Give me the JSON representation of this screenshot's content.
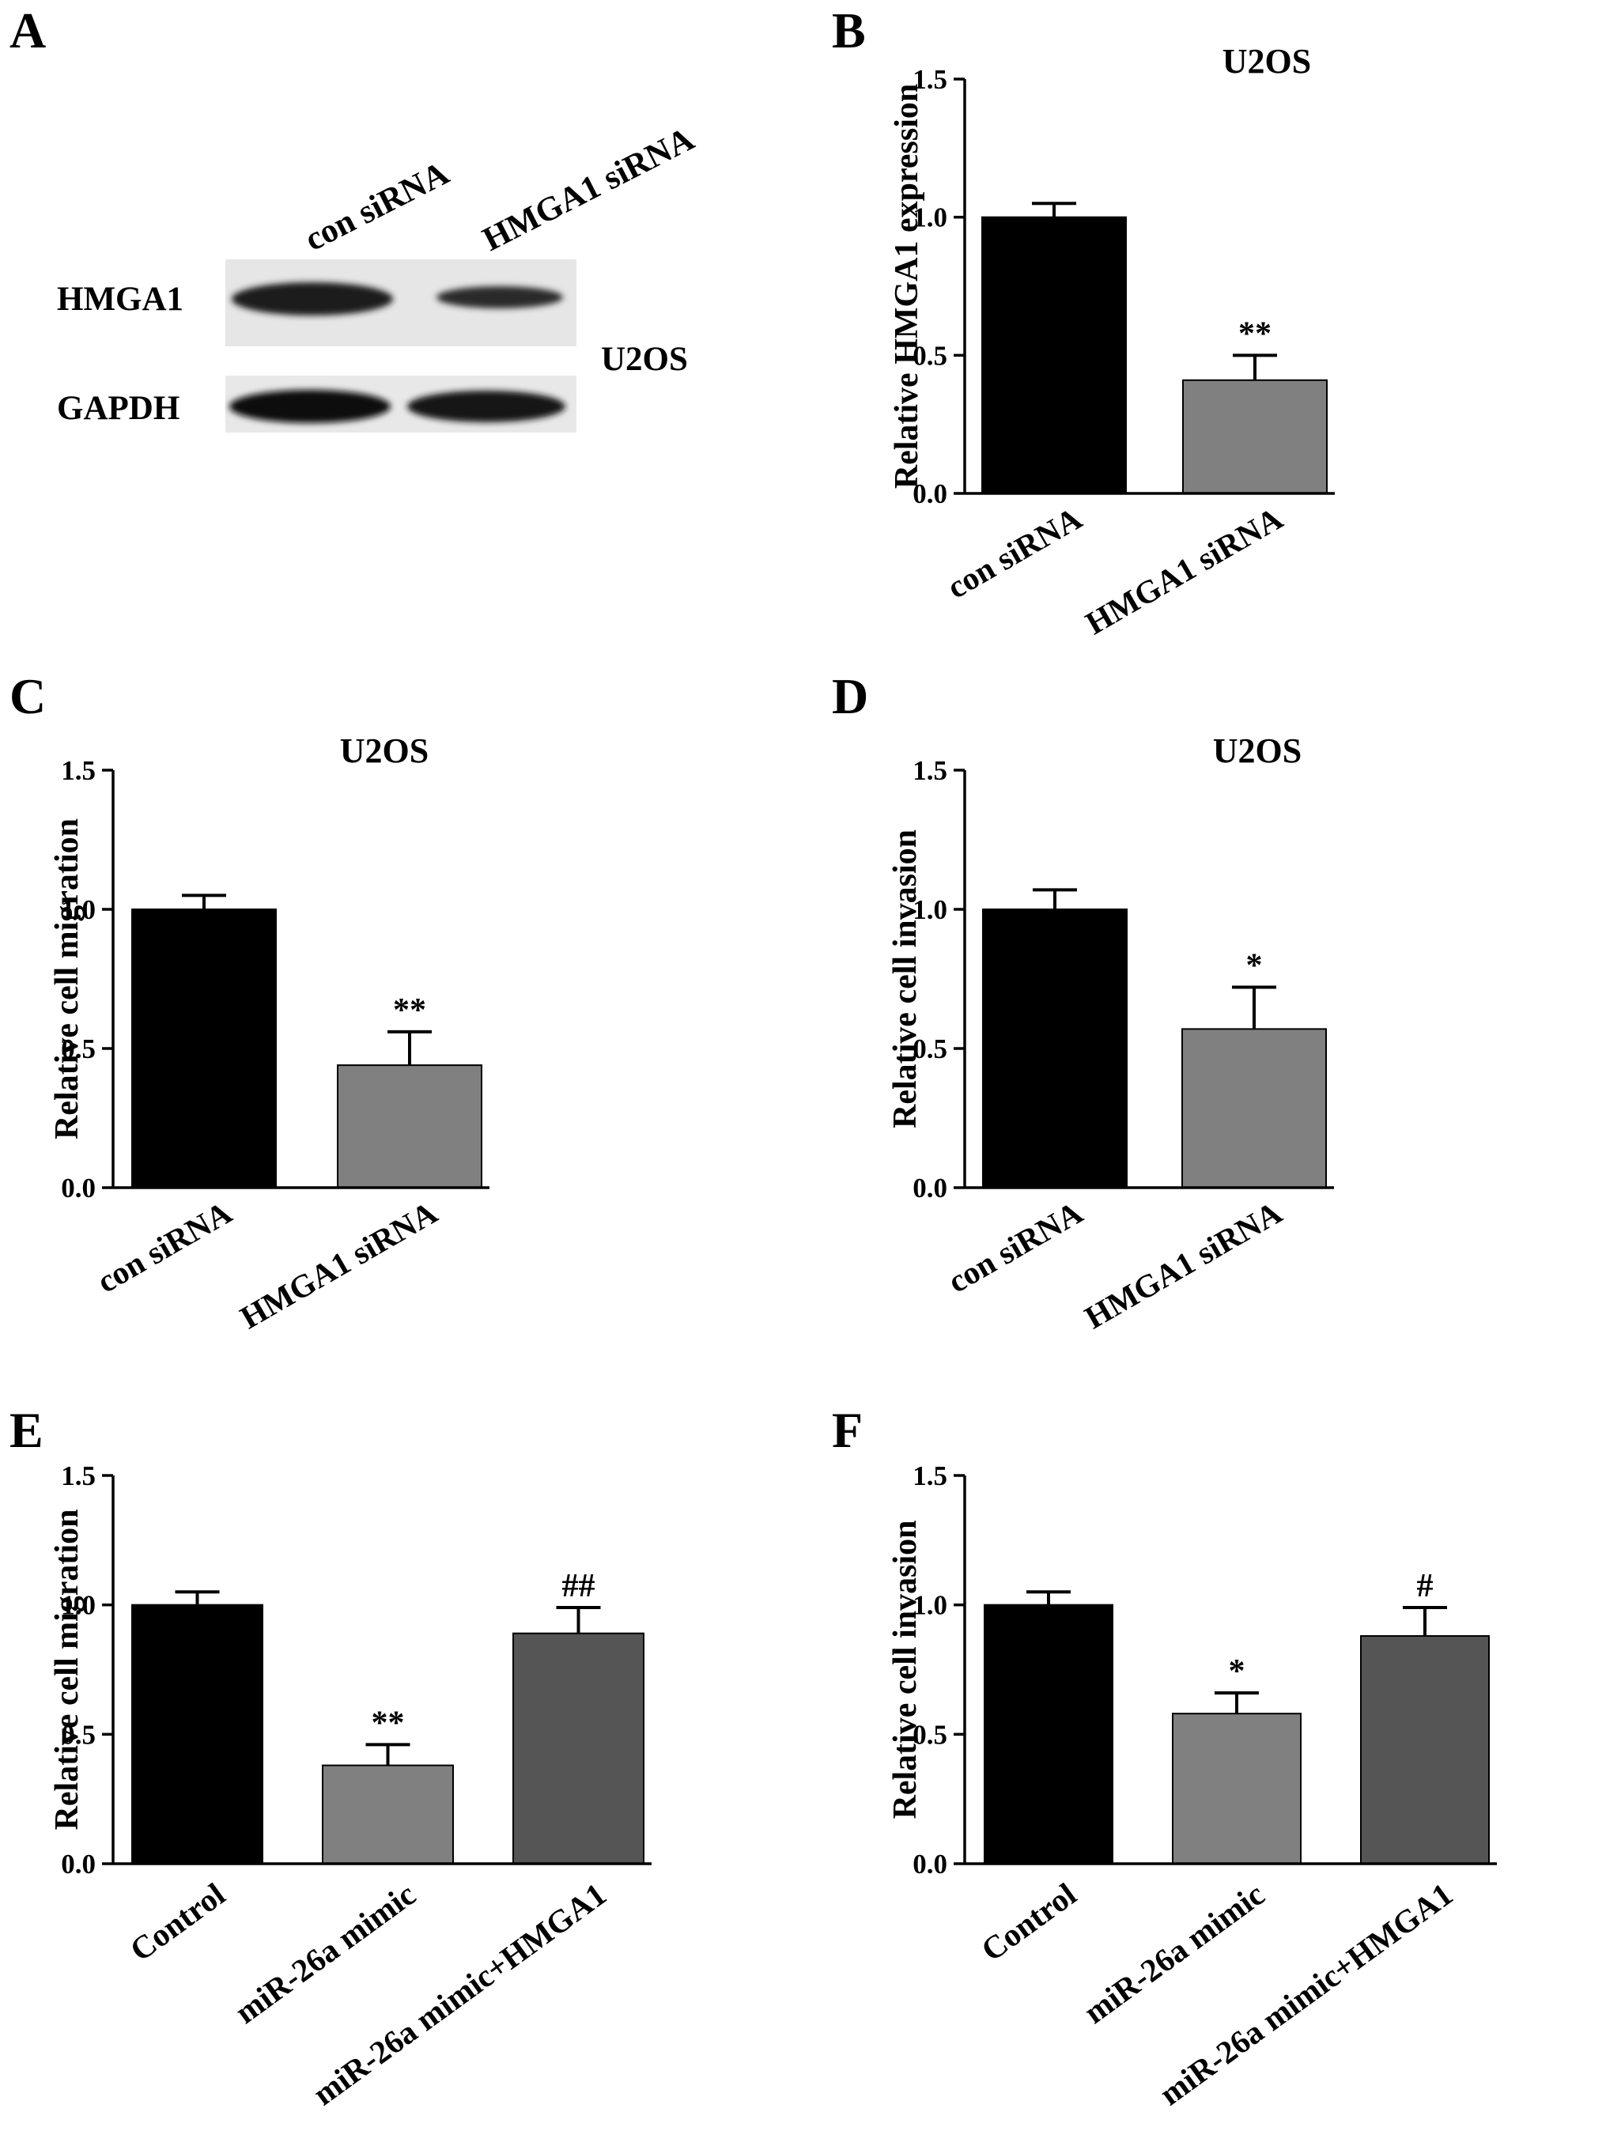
{
  "blot": {
    "letter": "A",
    "columns": [
      "con siRNA",
      "HMGA1 siRNA"
    ],
    "rows": [
      "HMGA1",
      "GAPDH"
    ],
    "cell_line": "U2OS"
  },
  "chart_data": [
    {
      "letter": "B",
      "type": "bar",
      "title": "U2OS",
      "xlabel": "",
      "ylabel": "Relative HMGA1 expression",
      "ylim": [
        0,
        1.5
      ],
      "yticks": [
        "0.0",
        "0.5",
        "1.0",
        "1.5"
      ],
      "categories": [
        "con siRNA",
        "HMGA1 siRNA"
      ],
      "values": [
        1.0,
        0.41
      ],
      "errors": [
        0.05,
        0.09
      ],
      "colors": [
        "#000000",
        "#808080"
      ],
      "annotations": [
        "",
        "**"
      ],
      "grid": false,
      "legend": "none"
    },
    {
      "letter": "C",
      "type": "bar",
      "title": "U2OS",
      "xlabel": "",
      "ylabel": "Relative cell migration",
      "ylim": [
        0,
        1.5
      ],
      "yticks": [
        "0.0",
        "0.5",
        "1.0",
        "1.5"
      ],
      "categories": [
        "con siRNA",
        "HMGA1 siRNA"
      ],
      "values": [
        1.0,
        0.44
      ],
      "errors": [
        0.05,
        0.12
      ],
      "colors": [
        "#000000",
        "#808080"
      ],
      "annotations": [
        "",
        "**"
      ],
      "grid": false,
      "legend": "none"
    },
    {
      "letter": "D",
      "type": "bar",
      "title": "U2OS",
      "xlabel": "",
      "ylabel": "Relative cell invasion",
      "ylim": [
        0,
        1.5
      ],
      "yticks": [
        "0.0",
        "0.5",
        "1.0",
        "1.5"
      ],
      "categories": [
        "con siRNA",
        "HMGA1 siRNA"
      ],
      "values": [
        1.0,
        0.57
      ],
      "errors": [
        0.07,
        0.15
      ],
      "colors": [
        "#000000",
        "#808080"
      ],
      "annotations": [
        "",
        "*"
      ],
      "grid": false,
      "legend": "none"
    },
    {
      "letter": "E",
      "type": "bar",
      "title": "",
      "xlabel": "",
      "ylabel": "Relative cell migration",
      "ylim": [
        0,
        1.5
      ],
      "yticks": [
        "0.0",
        "0.5",
        "1.0",
        "1.5"
      ],
      "categories": [
        "Control",
        "miR-26a mimic",
        "miR-26a mimic+HMGA1"
      ],
      "values": [
        1.0,
        0.38,
        0.89
      ],
      "errors": [
        0.05,
        0.08,
        0.1
      ],
      "colors": [
        "#000000",
        "#808080",
        "#555555"
      ],
      "annotations": [
        "",
        "**",
        "##"
      ],
      "grid": false,
      "legend": "none"
    },
    {
      "letter": "F",
      "type": "bar",
      "title": "",
      "xlabel": "",
      "ylabel": "Relative cell invasion",
      "ylim": [
        0,
        1.5
      ],
      "yticks": [
        "0.0",
        "0.5",
        "1.0",
        "1.5"
      ],
      "categories": [
        "Control",
        "miR-26a mimic",
        "miR-26a mimic+HMGA1"
      ],
      "values": [
        1.0,
        0.58,
        0.88
      ],
      "errors": [
        0.05,
        0.08,
        0.11
      ],
      "colors": [
        "#000000",
        "#808080",
        "#555555"
      ],
      "annotations": [
        "",
        "*",
        "#"
      ],
      "grid": false,
      "legend": "none"
    }
  ]
}
